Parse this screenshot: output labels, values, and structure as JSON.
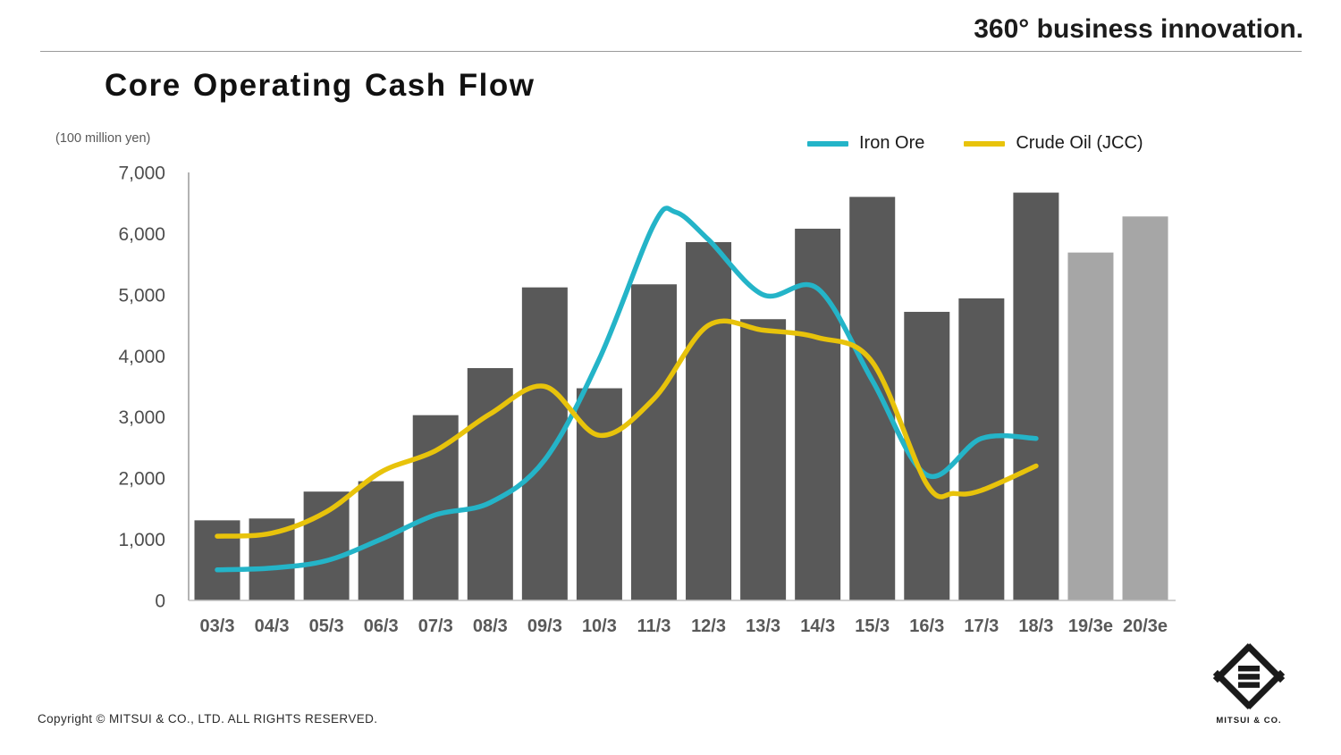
{
  "brand": "360° business innovation.",
  "title": "Core Operating Cash Flow",
  "unit_label": "(100 million yen)",
  "legend": [
    {
      "label": "Iron Ore",
      "color": "#24b4c8"
    },
    {
      "label": "Crude Oil (JCC)",
      "color": "#e8c30b"
    }
  ],
  "footer": {
    "copyright": "Copyright © MITSUI & CO., LTD. ALL RIGHTS RESERVED.",
    "logo_text": "MITSUI & CO."
  },
  "chart_data": {
    "type": "bar",
    "subtype": "bar-with-line-overlay",
    "unit": "100 million yen",
    "categories": [
      "03/3",
      "04/3",
      "05/3",
      "06/3",
      "07/3",
      "08/3",
      "09/3",
      "10/3",
      "11/3",
      "12/3",
      "13/3",
      "14/3",
      "15/3",
      "16/3",
      "17/3",
      "18/3",
      "19/3e",
      "20/3e"
    ],
    "bars": {
      "name": "Core Operating Cash Flow",
      "values": [
        1310,
        1340,
        1780,
        1950,
        3030,
        3800,
        5120,
        3470,
        5170,
        5860,
        4600,
        6080,
        6600,
        4720,
        4940,
        6670,
        5690,
        6280
      ],
      "actual_color": "#595959",
      "estimate_color": "#a6a6a6",
      "estimate_from_index": 16
    },
    "series": [
      {
        "name": "Iron Ore",
        "color": "#24b4c8",
        "points": [
          [
            0,
            500
          ],
          [
            1,
            530
          ],
          [
            2,
            650
          ],
          [
            3,
            1000
          ],
          [
            4,
            1400
          ],
          [
            5,
            1600
          ],
          [
            6,
            2300
          ],
          [
            7,
            3950
          ],
          [
            8,
            6150
          ],
          [
            8.4,
            6350
          ],
          [
            9,
            5900
          ],
          [
            10,
            5000
          ],
          [
            11,
            5100
          ],
          [
            12,
            3600
          ],
          [
            13,
            2050
          ],
          [
            14,
            2650
          ],
          [
            15,
            2650
          ]
        ]
      },
      {
        "name": "Crude Oil (JCC)",
        "color": "#e8c30b",
        "points": [
          [
            0,
            1050
          ],
          [
            1,
            1100
          ],
          [
            2,
            1450
          ],
          [
            3,
            2100
          ],
          [
            4,
            2450
          ],
          [
            5,
            3050
          ],
          [
            6,
            3500
          ],
          [
            7,
            2700
          ],
          [
            8,
            3300
          ],
          [
            9,
            4500
          ],
          [
            10,
            4420
          ],
          [
            11,
            4300
          ],
          [
            12,
            3900
          ],
          [
            13,
            1900
          ],
          [
            13.5,
            1750
          ],
          [
            14,
            1800
          ],
          [
            15,
            2200
          ]
        ]
      }
    ],
    "ylim": [
      0,
      7000
    ],
    "ytick_values": [
      0,
      1000,
      2000,
      3000,
      4000,
      5000,
      6000,
      7000
    ],
    "ytick_labels": [
      "0",
      "1,000",
      "2,000",
      "3,000",
      "4,000",
      "5,000",
      "6,000",
      "7,000"
    ],
    "grid": false,
    "legend_position": "top-right"
  }
}
